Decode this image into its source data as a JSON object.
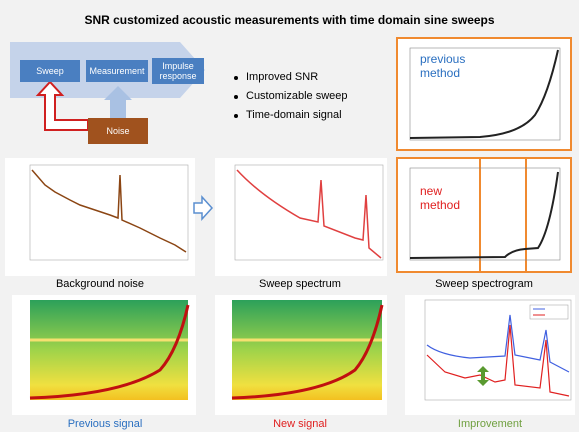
{
  "title": "SNR customized acoustic measurements with time domain sine sweeps",
  "flow": {
    "sweep": "Sweep",
    "measurement": "Measurement",
    "impulse": "Impulse response",
    "noise": "Noise"
  },
  "bullets": [
    "Improved SNR",
    "Customizable sweep",
    "Time-domain signal"
  ],
  "methods": {
    "previous": "previous method",
    "new": "new method"
  },
  "captions": [
    "Background noise",
    "Sweep spectrum",
    "Sweep spectrogram",
    "Previous signal",
    "New signal",
    "Improvement"
  ]
}
